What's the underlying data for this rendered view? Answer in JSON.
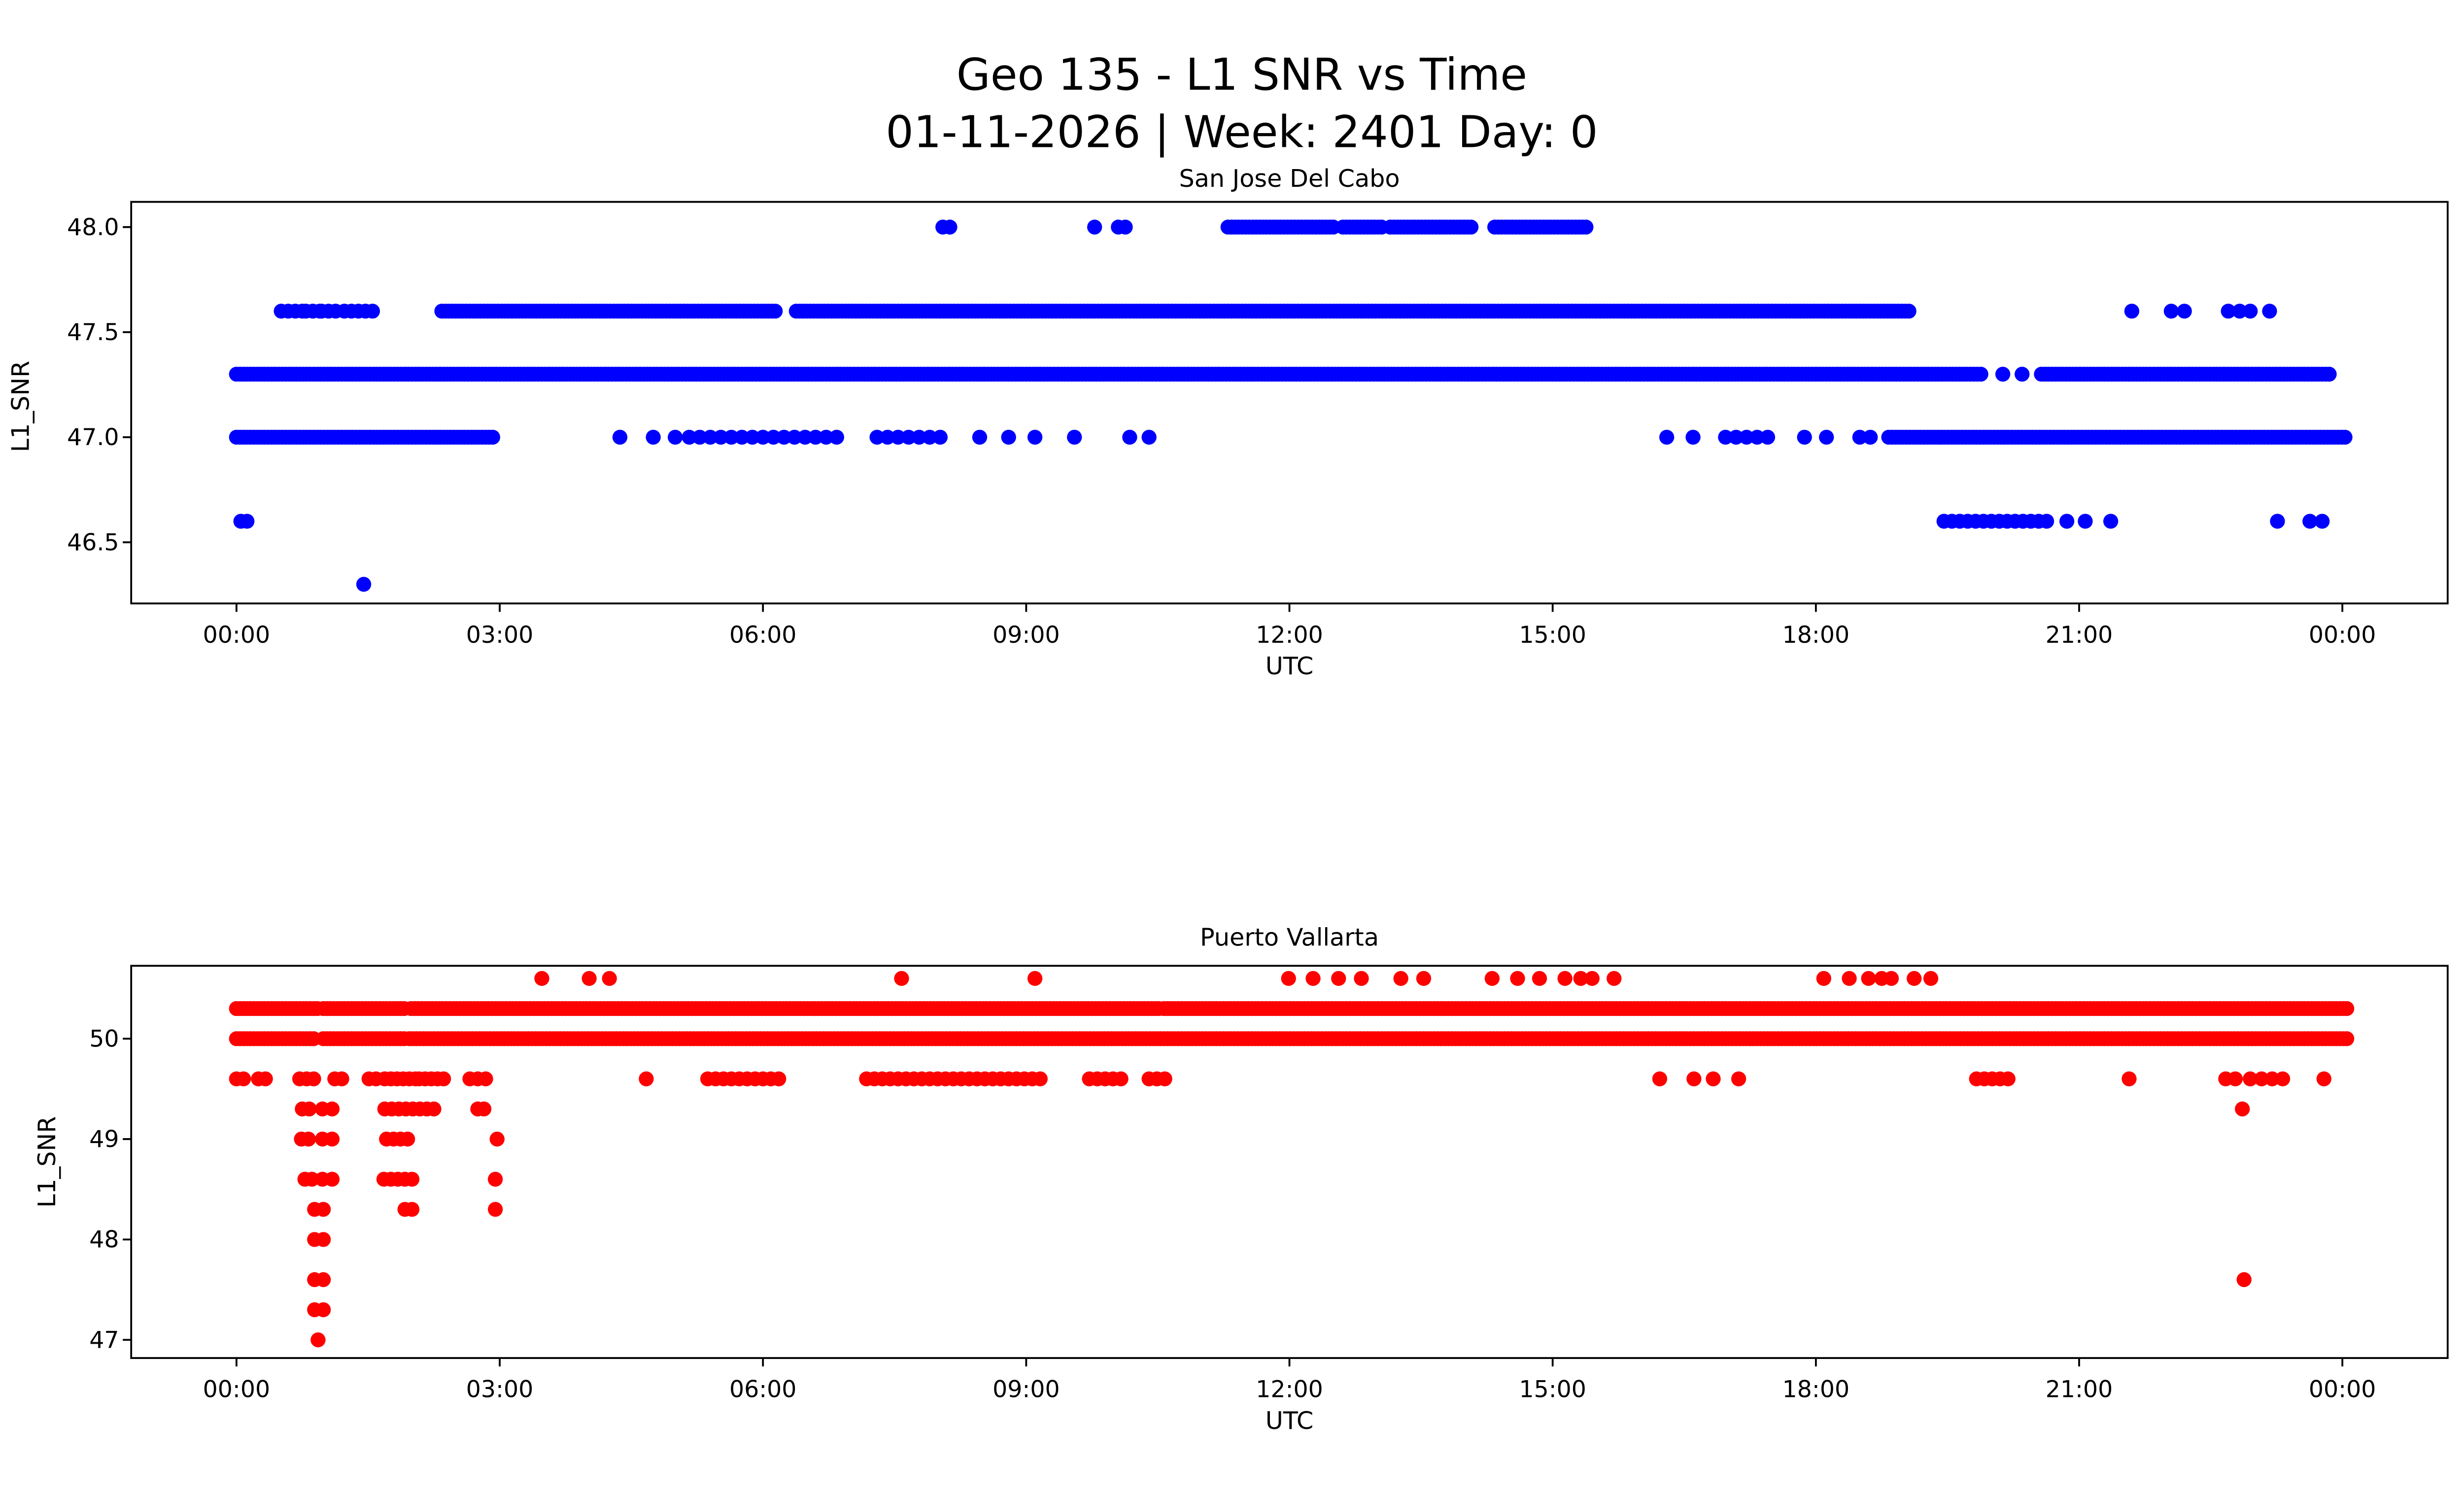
{
  "figure": {
    "title": "Geo 135 - L1 SNR vs Time",
    "subtitle": "01-11-2026 | Week: 2401 Day: 0",
    "background_color": "#ffffff",
    "text_color": "#000000"
  },
  "chart_data": [
    {
      "type": "scatter",
      "title": "San Jose Del Cabo",
      "xlabel": "UTC",
      "ylabel": "L1_SNR",
      "marker_color": "#0000ff",
      "marker_radius_px": 16,
      "grid": false,
      "xlim_hours": [
        -1.2,
        25.2
      ],
      "x_tick_hours": [
        0,
        3,
        6,
        9,
        12,
        15,
        18,
        21,
        24
      ],
      "x_tick_labels": [
        "00:00",
        "03:00",
        "06:00",
        "09:00",
        "12:00",
        "15:00",
        "18:00",
        "21:00",
        "00:00"
      ],
      "ylim": [
        46.209,
        48.12
      ],
      "y_ticks": [
        46.5,
        47.0,
        47.5,
        48.0
      ],
      "y_tick_labels": [
        "46.5",
        "47.0",
        "47.5",
        "48.0"
      ],
      "series": [
        {
          "snr": 48.0,
          "segments": [
            [
              11.3,
              12.52
            ],
            [
              12.61,
              13.07
            ],
            [
              13.15,
              14.08
            ],
            [
              14.34,
              15.4
            ]
          ],
          "points": [
            8.05,
            8.13,
            9.78,
            10.05,
            10.13
          ]
        },
        {
          "snr": 47.6,
          "segments": [
            [
              0.51,
              0.76,
              0.08
            ],
            [
              0.79,
              0.95,
              0.08
            ],
            [
              0.97,
              1.2,
              0.08
            ],
            [
              1.23,
              1.57,
              0.08
            ],
            [
              2.34,
              6.14
            ],
            [
              6.38,
              19.09
            ]
          ],
          "points": [
            21.6,
            22.05,
            22.2,
            22.7,
            22.83,
            22.95,
            23.17
          ]
        },
        {
          "snr": 47.3,
          "segments": [
            [
              0.0,
              19.88
            ],
            [
              20.57,
              23.87
            ]
          ],
          "points": [
            20.13,
            20.35
          ]
        },
        {
          "snr": 47.0,
          "segments": [
            [
              0.0,
              2.95
            ],
            [
              5.16,
              6.85,
              0.12
            ],
            [
              7.3,
              8.1,
              0.12
            ],
            [
              16.97,
              17.56,
              0.12
            ],
            [
              18.83,
              24.05
            ]
          ],
          "points": [
            4.37,
            4.75,
            5.0,
            8.47,
            8.8,
            9.1,
            9.55,
            10.18,
            10.4,
            16.3,
            16.6,
            17.87,
            18.12,
            18.5,
            18.62
          ]
        },
        {
          "snr": 46.6,
          "segments": [
            [
              19.46,
              20.71,
              0.09
            ]
          ],
          "points": [
            0.05,
            0.12,
            20.86,
            21.07,
            21.36,
            23.26,
            23.63,
            23.77
          ]
        },
        {
          "snr": 46.3,
          "segments": [],
          "points": [
            1.45
          ]
        }
      ]
    },
    {
      "type": "scatter",
      "title": "Puerto Vallarta",
      "xlabel": "UTC",
      "ylabel": "L1_SNR",
      "marker_color": "#ff0000",
      "marker_radius_px": 16,
      "grid": false,
      "xlim_hours": [
        -1.2,
        25.2
      ],
      "x_tick_hours": [
        0,
        3,
        6,
        9,
        12,
        15,
        18,
        21,
        24
      ],
      "x_tick_labels": [
        "00:00",
        "03:00",
        "06:00",
        "09:00",
        "12:00",
        "15:00",
        "18:00",
        "21:00",
        "00:00"
      ],
      "ylim": [
        46.819,
        50.726
      ],
      "y_ticks": [
        47,
        48,
        49,
        50
      ],
      "y_tick_labels": [
        "47",
        "48",
        "49",
        "50"
      ],
      "series": [
        {
          "snr": 50.6,
          "segments": [],
          "points": [
            3.48,
            4.02,
            4.25,
            7.58,
            9.1,
            11.99,
            12.27,
            12.56,
            12.82,
            13.27,
            13.53,
            14.31,
            14.6,
            14.85,
            15.14,
            15.32,
            15.45,
            15.7,
            18.09,
            18.38,
            18.6,
            18.75,
            18.86,
            19.12,
            19.31
          ]
        },
        {
          "snr": 50.3,
          "segments": [
            [
              0.0,
              0.93
            ],
            [
              0.99,
              1.94
            ],
            [
              1.99,
              10.52
            ],
            [
              10.57,
              24.05
            ]
          ],
          "points": []
        },
        {
          "snr": 50.0,
          "segments": [
            [
              0.0,
              0.9
            ],
            [
              0.99,
              1.94
            ],
            [
              1.97,
              24.05
            ]
          ],
          "points": []
        },
        {
          "snr": 49.6,
          "segments": [
            [
              0.0,
              0.12,
              0.08
            ],
            [
              0.25,
              0.37,
              0.08
            ],
            [
              0.72,
              0.94,
              0.08
            ],
            [
              1.12,
              1.26,
              0.08
            ],
            [
              1.51,
              1.59,
              0.08
            ],
            [
              1.69,
              2.05,
              0.07
            ],
            [
              2.08,
              2.39,
              0.07
            ],
            [
              2.66,
              2.88,
              0.09
            ],
            [
              5.37,
              6.21,
              0.09
            ],
            [
              7.18,
              9.18,
              0.09
            ],
            [
              9.72,
              10.14,
              0.09
            ],
            [
              10.4,
              10.66,
              0.09
            ],
            [
              19.83,
              20.25,
              0.09
            ]
          ],
          "points": [
            4.67,
            16.22,
            16.61,
            16.83,
            17.12,
            21.57,
            22.67,
            22.78,
            22.95,
            23.08,
            23.2,
            23.32,
            23.79
          ]
        },
        {
          "snr": 49.3,
          "segments": [
            [
              0.75,
              0.87,
              0.08
            ],
            [
              1.69,
              2.09,
              0.08
            ],
            [
              2.17,
              2.27,
              0.08
            ]
          ],
          "points": [
            0.98,
            1.09,
            2.75,
            2.82,
            22.86
          ]
        },
        {
          "snr": 49.0,
          "segments": [
            [
              0.74,
              0.87,
              0.08
            ],
            [
              1.71,
              2.0,
              0.08
            ]
          ],
          "points": [
            0.98,
            1.09,
            2.97
          ]
        },
        {
          "snr": 48.6,
          "segments": [
            [
              0.78,
              0.87,
              0.08
            ],
            [
              1.68,
              2.0,
              0.08
            ]
          ],
          "points": [
            0.98,
            1.09,
            2.95
          ]
        },
        {
          "snr": 48.3,
          "segments": [
            [
              1.92,
              2.07,
              0.08
            ]
          ],
          "points": [
            0.89,
            0.99,
            2.95
          ]
        },
        {
          "snr": 48.0,
          "segments": [],
          "points": [
            0.89,
            0.99
          ]
        },
        {
          "snr": 47.6,
          "segments": [],
          "points": [
            0.89,
            0.99,
            22.88
          ]
        },
        {
          "snr": 47.3,
          "segments": [],
          "points": [
            0.89,
            0.99
          ]
        },
        {
          "snr": 47.0,
          "segments": [],
          "points": [
            0.93
          ]
        }
      ]
    }
  ]
}
